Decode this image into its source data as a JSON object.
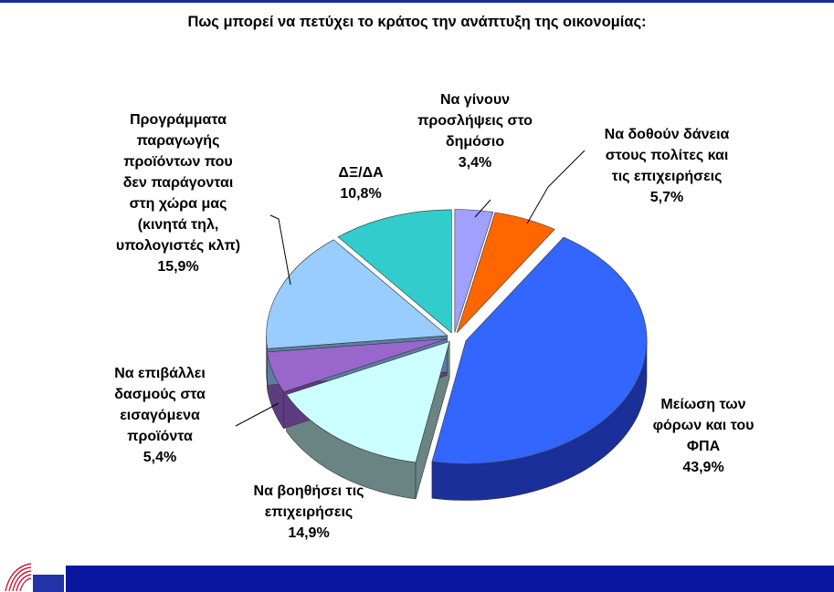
{
  "chart_data": {
    "type": "pie",
    "title": "Πως μπορεί να πετύχει το κράτος την ανάπτυξη της οικονομίας:",
    "slices": [
      {
        "label_lines": [
          "Να γίνουν",
          "προσλήψεις στο",
          "δημόσιο"
        ],
        "value": 3.4,
        "value_label": "3,4%",
        "color": "#a0a0ff",
        "side_color": "#6a6ad0"
      },
      {
        "label_lines": [
          "Να δοθούν δάνεια",
          "στους πολίτες και",
          "τις επιχειρήσεις"
        ],
        "value": 5.7,
        "value_label": "5,7%",
        "color": "#ff6600",
        "side_color": "#b84400"
      },
      {
        "label_lines": [
          "Μείωση των",
          "φόρων και του",
          "ΦΠΑ"
        ],
        "value": 43.9,
        "value_label": "43,9%",
        "color": "#3366ff",
        "side_color": "#1a2f99"
      },
      {
        "label_lines": [
          "Να βοηθήσει τις",
          "επιχειρήσεις"
        ],
        "value": 14.9,
        "value_label": "14,9%",
        "color": "#ccffff",
        "side_color": "#6a8484"
      },
      {
        "label_lines": [
          "Να επιβάλλει",
          "δασμούς στα",
          "εισαγόμενα",
          "προϊόντα"
        ],
        "value": 5.4,
        "value_label": "5,4%",
        "color": "#9966cc",
        "side_color": "#5e3c80"
      },
      {
        "label_lines": [
          "Προγράμματα",
          "παραγωγής",
          "προϊόντων που",
          "δεν παράγονται",
          "στη χώρα μας",
          "(κινητά τηλ,",
          "υπολογιστές κλπ)"
        ],
        "value": 15.9,
        "value_label": "15,9%",
        "color": "#99ccff",
        "side_color": "#5b7ea6"
      },
      {
        "label_lines": [
          "ΔΞ/ΔΑ"
        ],
        "value": 10.8,
        "value_label": "10,8%",
        "color": "#33cccc",
        "side_color": "#1c8080"
      }
    ]
  }
}
